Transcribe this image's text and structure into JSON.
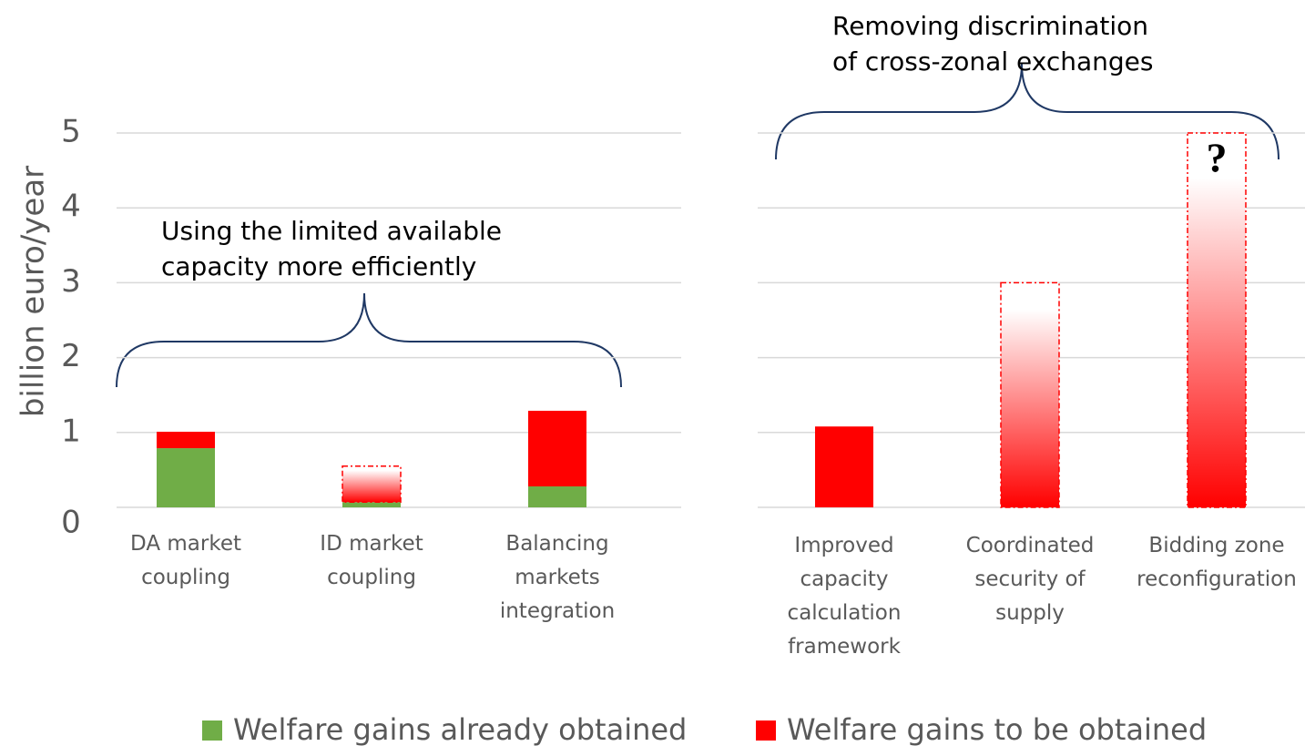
{
  "chart_data": [
    {
      "type": "bar",
      "stacked": true,
      "ylabel": "billion euro/year",
      "annotation": "Using the limited available\ncapacity more efficiently",
      "categories": [
        "DA market\ncoupling",
        "ID market\ncoupling",
        "Balancing\nmarkets\nintegration"
      ],
      "series": [
        {
          "name": "Welfare gains already obtained",
          "color": "#70ad47",
          "values": [
            0.79,
            0.07,
            0.28
          ],
          "estimated": [
            false,
            false,
            false
          ]
        },
        {
          "name": "Welfare gains to be obtained",
          "color": "#ff0000",
          "values": [
            0.22,
            0.48,
            1.01
          ],
          "estimated": [
            false,
            true,
            false
          ]
        }
      ],
      "ylim": [
        0,
        5
      ],
      "yticks": [
        0,
        1,
        2,
        3,
        4,
        5
      ],
      "grid": true,
      "legend": "bottom"
    },
    {
      "type": "bar",
      "stacked": true,
      "annotation": "Removing discrimination\nof cross-zonal exchanges",
      "marker_text": "?",
      "categories": [
        "Improved\ncapacity\ncalculation\nframework",
        "Coordinated\nsecurity of\nsupply",
        "Bidding zone\nreconfiguration"
      ],
      "series": [
        {
          "name": "Welfare gains to be obtained",
          "color": "#ff0000",
          "values": [
            1.08,
            3,
            5
          ],
          "estimated": [
            false,
            true,
            true
          ]
        }
      ],
      "ylim": [
        0,
        5
      ],
      "yticks": [
        0,
        1,
        2,
        3,
        4,
        5
      ],
      "grid": true
    }
  ]
}
